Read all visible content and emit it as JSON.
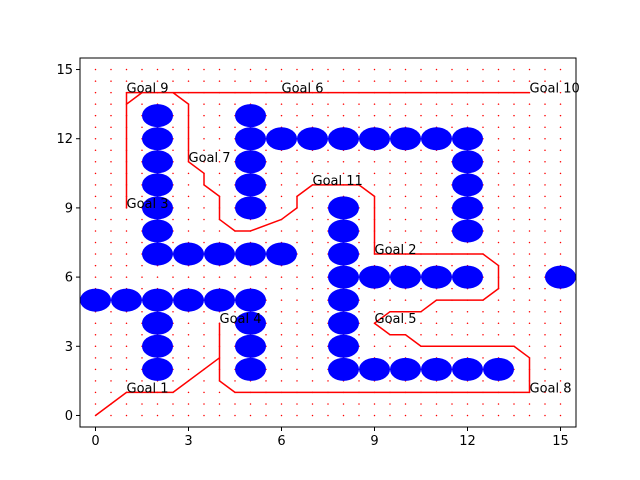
{
  "chart_data": {
    "type": "scatter",
    "title": "",
    "xlabel": "",
    "ylabel": "",
    "xlim": [
      -0.5,
      15.5
    ],
    "ylim": [
      -0.5,
      15.5
    ],
    "xticks": [
      "0",
      "3",
      "6",
      "9",
      "12",
      "15"
    ],
    "yticks": [
      "0",
      "3",
      "6",
      "9",
      "12",
      "15"
    ],
    "grid": "red dotted grid of points at every 0.5 unit",
    "legend": "none",
    "colors": {
      "obstacle": "#0000ff",
      "path": "#ff0000",
      "grid_dot": "#ff0000"
    },
    "obstacles": [
      [
        2,
        13
      ],
      [
        2,
        12
      ],
      [
        2,
        11
      ],
      [
        2,
        10
      ],
      [
        2,
        9
      ],
      [
        2,
        8
      ],
      [
        2,
        7
      ],
      [
        3,
        7
      ],
      [
        4,
        7
      ],
      [
        5,
        7
      ],
      [
        6,
        7
      ],
      [
        5,
        13
      ],
      [
        5,
        12
      ],
      [
        5,
        11
      ],
      [
        5,
        10
      ],
      [
        5,
        9
      ],
      [
        6,
        12
      ],
      [
        7,
        12
      ],
      [
        8,
        12
      ],
      [
        9,
        12
      ],
      [
        10,
        12
      ],
      [
        11,
        12
      ],
      [
        12,
        12
      ],
      [
        12,
        11
      ],
      [
        12,
        10
      ],
      [
        12,
        9
      ],
      [
        12,
        8
      ],
      [
        8,
        9
      ],
      [
        8,
        8
      ],
      [
        8,
        7
      ],
      [
        8,
        6
      ],
      [
        8,
        5
      ],
      [
        8,
        4
      ],
      [
        8,
        3
      ],
      [
        8,
        2
      ],
      [
        9,
        6
      ],
      [
        10,
        6
      ],
      [
        11,
        6
      ],
      [
        12,
        6
      ],
      [
        9,
        2
      ],
      [
        10,
        2
      ],
      [
        11,
        2
      ],
      [
        12,
        2
      ],
      [
        13,
        2
      ],
      [
        0,
        5
      ],
      [
        1,
        5
      ],
      [
        2,
        5
      ],
      [
        3,
        5
      ],
      [
        4,
        5
      ],
      [
        5,
        5
      ],
      [
        2,
        4
      ],
      [
        2,
        3
      ],
      [
        2,
        2
      ],
      [
        5,
        4
      ],
      [
        5,
        3
      ],
      [
        5,
        2
      ],
      [
        15,
        6
      ]
    ],
    "path": [
      [
        0,
        0
      ],
      [
        1,
        1
      ],
      [
        2.5,
        1
      ],
      [
        4,
        2.5
      ],
      [
        4,
        4
      ],
      [
        4,
        1.5
      ],
      [
        4.5,
        1
      ],
      [
        14,
        1
      ],
      [
        14,
        2.5
      ],
      [
        13.5,
        3
      ],
      [
        10.5,
        3
      ],
      [
        10,
        3.5
      ],
      [
        9.5,
        3.5
      ],
      [
        9,
        4
      ],
      [
        9.5,
        4.5
      ],
      [
        10.5,
        4.5
      ],
      [
        11,
        5
      ],
      [
        12.5,
        5
      ],
      [
        13,
        5.5
      ],
      [
        13,
        6.5
      ],
      [
        12.5,
        7
      ],
      [
        9,
        7
      ],
      [
        9,
        9.5
      ],
      [
        8.5,
        10
      ],
      [
        7.5,
        10
      ],
      [
        7,
        10
      ],
      [
        6.5,
        9.5
      ],
      [
        6.5,
        9
      ],
      [
        6,
        8.5
      ],
      [
        5,
        8
      ],
      [
        4.5,
        8
      ],
      [
        4,
        8.5
      ],
      [
        4,
        9.5
      ],
      [
        3.5,
        10
      ],
      [
        3.5,
        10.5
      ],
      [
        3,
        11
      ],
      [
        3,
        13.5
      ],
      [
        2.5,
        14
      ],
      [
        1.5,
        14
      ],
      [
        1,
        13.5
      ],
      [
        1,
        9
      ],
      [
        1,
        14
      ],
      [
        14,
        14
      ]
    ],
    "goals": [
      {
        "label": "Goal 1",
        "x": 1,
        "y": 1
      },
      {
        "label": "Goal 2",
        "x": 9,
        "y": 7
      },
      {
        "label": "Goal 3",
        "x": 1,
        "y": 9
      },
      {
        "label": "Goal 4",
        "x": 4,
        "y": 4
      },
      {
        "label": "Goal 5",
        "x": 9,
        "y": 4
      },
      {
        "label": "Goal 6",
        "x": 6,
        "y": 14
      },
      {
        "label": "Goal 7",
        "x": 3,
        "y": 11
      },
      {
        "label": "Goal 8",
        "x": 14,
        "y": 1
      },
      {
        "label": "Goal 9",
        "x": 1,
        "y": 14
      },
      {
        "label": "Goal 10",
        "x": 14,
        "y": 14
      },
      {
        "label": "Goal 11",
        "x": 7,
        "y": 10
      }
    ]
  }
}
